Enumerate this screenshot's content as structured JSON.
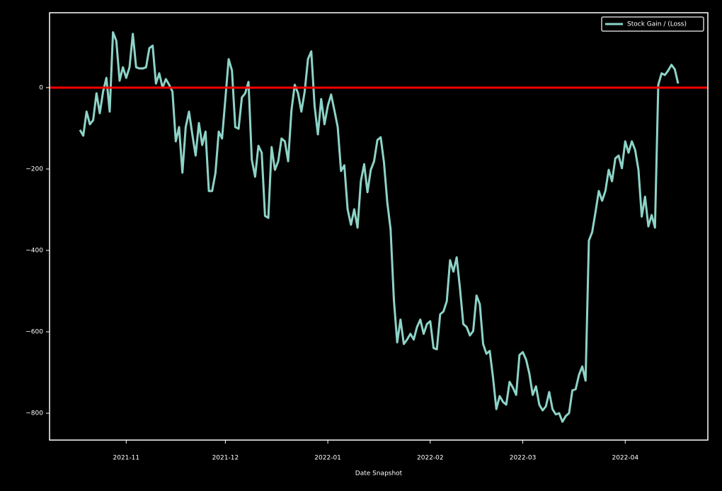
{
  "chart_data": {
    "type": "line",
    "xlabel": "Date Snapshot",
    "x": [
      17,
      18,
      19,
      20,
      21,
      22,
      23,
      24,
      25,
      26,
      27,
      28,
      29,
      30,
      31,
      32,
      33,
      34,
      35,
      36,
      37,
      38,
      39,
      40,
      41,
      42,
      43,
      44,
      45,
      46,
      47,
      48,
      49,
      50,
      51,
      52,
      53,
      54,
      55,
      56,
      57,
      58,
      59,
      60,
      61,
      62,
      63,
      64,
      65,
      66,
      67,
      68,
      69,
      70,
      71,
      72,
      73,
      74,
      75,
      76,
      77,
      78,
      79,
      80,
      81,
      82,
      83,
      84,
      85,
      86,
      87,
      88,
      89,
      90,
      91,
      92,
      93,
      94,
      95,
      96,
      97,
      98,
      99,
      100,
      101,
      102,
      103,
      104,
      105,
      106,
      107,
      108,
      109,
      110,
      111,
      112,
      113,
      114,
      115,
      116,
      117,
      118,
      119,
      120,
      121,
      122,
      123,
      124,
      125,
      126,
      127,
      128,
      129,
      130,
      131,
      132,
      133,
      134,
      135,
      136,
      137,
      138,
      139,
      140,
      141,
      142,
      143,
      144,
      145,
      146,
      147,
      148,
      149,
      150,
      151,
      152,
      153,
      154,
      155,
      156,
      157,
      158,
      159,
      160,
      161,
      162,
      163,
      164,
      165,
      166,
      167,
      168,
      169,
      170,
      171,
      172,
      173,
      174,
      175,
      176,
      177,
      178,
      179,
      180,
      181,
      182,
      183,
      184,
      185,
      186,
      187,
      188,
      189,
      190,
      191,
      192,
      193,
      194,
      195,
      196,
      197,
      198
    ],
    "series": [
      {
        "name": "Stock Gain / (Loss)",
        "color": "#8dd3c7",
        "values": [
          -104,
          -118,
          -59,
          -90,
          -80,
          -14,
          -63,
          -10,
          24,
          -59,
          136,
          115,
          17,
          50,
          24,
          50,
          132,
          50,
          47,
          47,
          50,
          97,
          103,
          10,
          35,
          0,
          21,
          7,
          -10,
          -132,
          -97,
          -209,
          -97,
          -59,
          -115,
          -167,
          -87,
          -141,
          -108,
          -254,
          -254,
          -210,
          -108,
          -125,
          -28,
          70,
          42,
          -97,
          -101,
          -24,
          -14,
          14,
          -177,
          -219,
          -143,
          -160,
          -315,
          -320,
          -146,
          -202,
          -181,
          -125,
          -132,
          -181,
          -56,
          7,
          -14,
          -59,
          -10,
          70,
          89,
          -45,
          -115,
          -28,
          -90,
          -45,
          -17,
          -56,
          -97,
          -205,
          -191,
          -299,
          -337,
          -299,
          -344,
          -230,
          -188,
          -257,
          -202,
          -181,
          -129,
          -122,
          -184,
          -282,
          -348,
          -522,
          -626,
          -570,
          -630,
          -619,
          -605,
          -619,
          -588,
          -570,
          -605,
          -581,
          -574,
          -640,
          -643,
          -557,
          -550,
          -525,
          -424,
          -452,
          -417,
          -494,
          -581,
          -588,
          -609,
          -598,
          -511,
          -532,
          -630,
          -654,
          -647,
          -713,
          -790,
          -758,
          -772,
          -779,
          -723,
          -737,
          -755,
          -657,
          -650,
          -668,
          -703,
          -755,
          -734,
          -779,
          -793,
          -783,
          -748,
          -790,
          -803,
          -800,
          -821,
          -807,
          -800,
          -744,
          -741,
          -706,
          -685,
          -720,
          -376,
          -355,
          -306,
          -254,
          -278,
          -254,
          -202,
          -230,
          -174,
          -167,
          -198,
          -132,
          -160,
          -132,
          -153,
          -202,
          -317,
          -268,
          -341,
          -313,
          -344,
          7,
          35,
          31,
          42,
          56,
          45,
          10
        ]
      }
    ],
    "xlim": [
      7.8,
      207
    ],
    "xticks": [
      {
        "value": 31,
        "label": "2021-11"
      },
      {
        "value": 61,
        "label": "2021-12"
      },
      {
        "value": 92,
        "label": "2022-01"
      },
      {
        "value": 123,
        "label": "2022-02"
      },
      {
        "value": 151,
        "label": "2022-03"
      },
      {
        "value": 182,
        "label": "2022-04"
      }
    ],
    "ylim": [
      -866,
      184
    ],
    "yticks": [
      {
        "value": -800,
        "label": "−800"
      },
      {
        "value": -600,
        "label": "−600"
      },
      {
        "value": -400,
        "label": "−400"
      },
      {
        "value": -200,
        "label": "−200"
      },
      0
    ],
    "hline": {
      "value": 0,
      "color": "#ff0000"
    },
    "legend": "upper right",
    "grid": false
  }
}
